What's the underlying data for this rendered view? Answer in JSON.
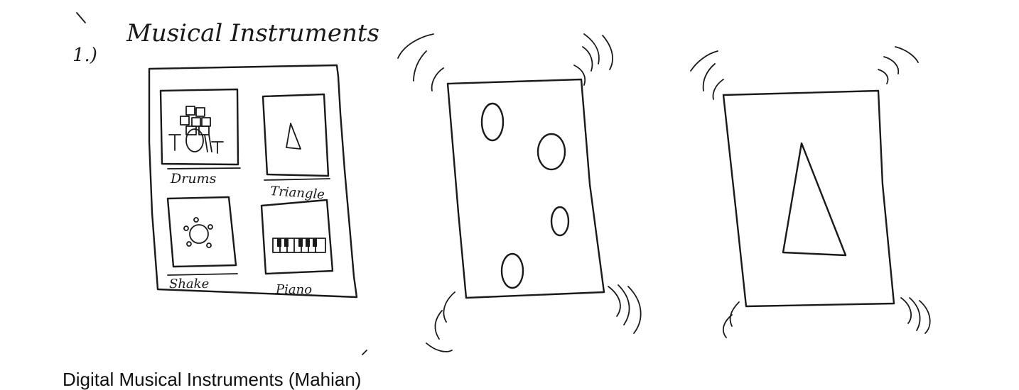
{
  "sketch": {
    "item_number": "1.)",
    "heading": "Musical Instruments",
    "tiles": [
      {
        "label": "Drums",
        "icon": "drum-kit-icon"
      },
      {
        "label": "Triangle",
        "icon": "triangle-icon"
      },
      {
        "label": "Shake",
        "icon": "shaker-icon"
      },
      {
        "label": "Piano",
        "icon": "piano-keys-icon"
      }
    ],
    "drum_screen_icon": "drum-pads-icon",
    "triangle_screen_icon": "large-triangle-icon"
  },
  "caption": "Digital Musical Instruments (Mahian)"
}
